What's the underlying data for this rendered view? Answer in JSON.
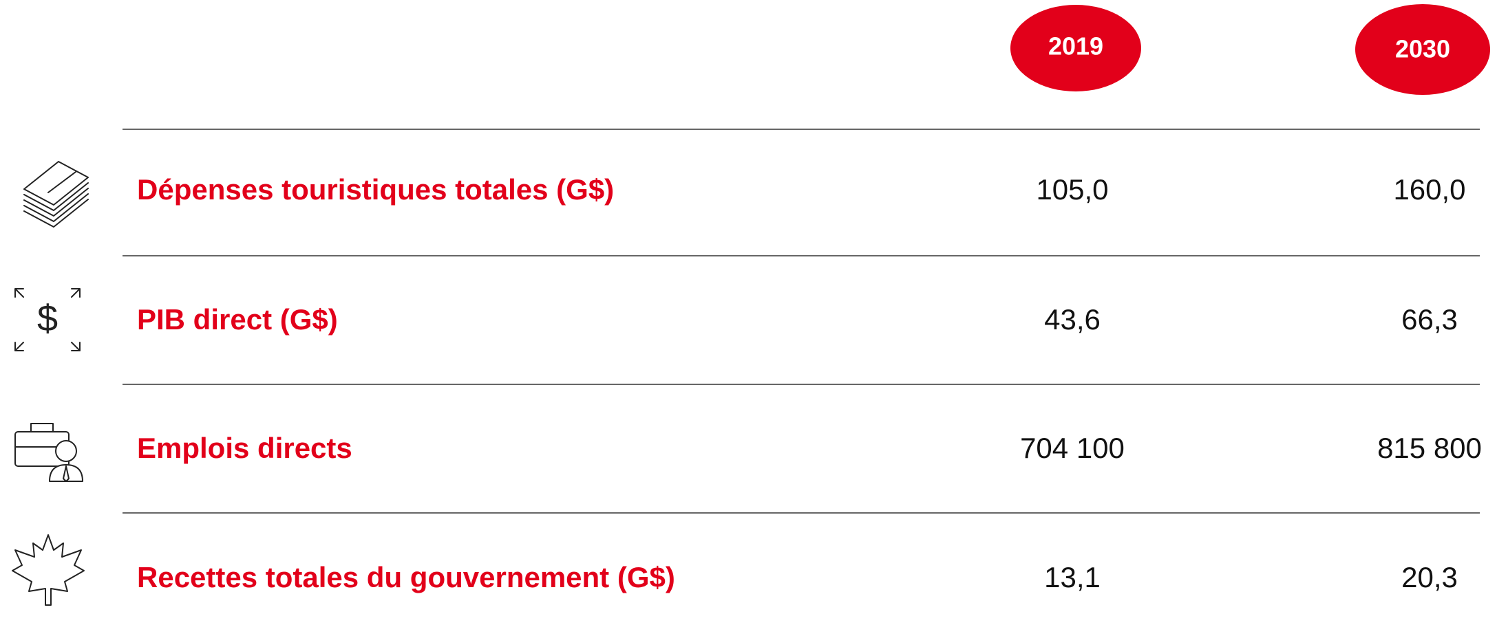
{
  "header": {
    "years": [
      "2019",
      "2030"
    ]
  },
  "rows": [
    {
      "label": "Dépenses touristiques totales (G$)",
      "values": [
        "105,0",
        "160,0"
      ]
    },
    {
      "label": "PIB direct (G$)",
      "values": [
        "43,6",
        "66,3"
      ]
    },
    {
      "label": "Emplois directs",
      "values": [
        "704 100",
        "815 800"
      ]
    },
    {
      "label": "Recettes totales du gouvernement (G$)",
      "values": [
        "13,1",
        "20,3"
      ]
    }
  ]
}
